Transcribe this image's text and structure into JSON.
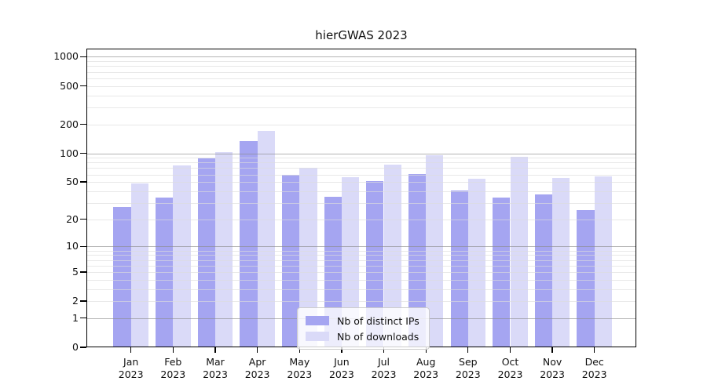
{
  "chart_data": {
    "type": "bar",
    "title": "hierGWAS 2023",
    "categories": [
      "Jan 2023",
      "Feb 2023",
      "Mar 2023",
      "Apr 2023",
      "May 2023",
      "Jun 2023",
      "Jul 2023",
      "Aug 2023",
      "Sep 2023",
      "Oct 2023",
      "Nov 2023",
      "Dec 2023"
    ],
    "series": [
      {
        "name": "Nb of distinct IPs",
        "color": "#a5a5f1",
        "values": [
          27,
          34,
          89,
          135,
          59,
          35,
          51,
          61,
          41,
          34,
          37,
          25
        ]
      },
      {
        "name": "Nb of downloads",
        "color": "#dadaf8",
        "values": [
          48,
          74,
          103,
          172,
          70,
          56,
          76,
          96,
          54,
          92,
          55,
          57
        ]
      }
    ],
    "y_scale": "log10(1+v)",
    "y_ticks": [
      0,
      1,
      2,
      5,
      10,
      20,
      50,
      100,
      200,
      500,
      1000
    ],
    "ylim": [
      0,
      1200
    ],
    "xlabel": "",
    "ylabel": "",
    "grid": "horizontal",
    "legend_position": "lower center",
    "colors": {
      "axis": "#000000",
      "major_gridline": "#a9a9a9",
      "minor_gridline": "#ececec",
      "background": "#ffffff"
    }
  }
}
